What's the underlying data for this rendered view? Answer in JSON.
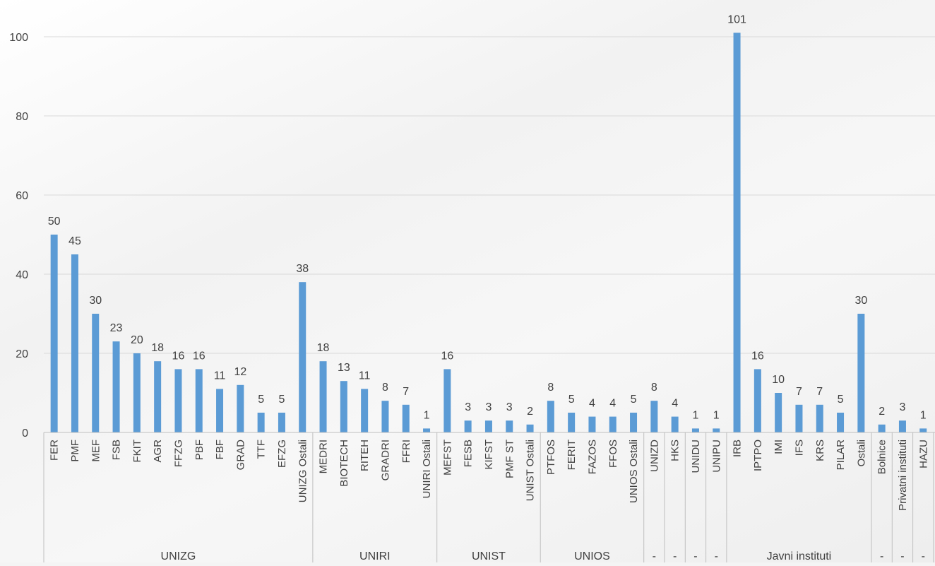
{
  "chart_data": {
    "type": "bar",
    "title": "",
    "xlabel": "",
    "ylabel": "",
    "ylim": [
      0,
      110
    ],
    "y_ticks": [
      "0",
      "20",
      "40",
      "60",
      "80",
      "100"
    ],
    "grid": true,
    "bar_color": "#5b9bd5",
    "categories": [
      "FER",
      "PMF",
      "MEF",
      "FSB",
      "FKIT",
      "AGR",
      "FFZG",
      "PBF",
      "FBF",
      "GRAD",
      "TTF",
      "EFZG",
      "UNIZG Ostali",
      "MEDRI",
      "BIOTECH",
      "RITEH",
      "GRADRI",
      "FFRI",
      "UNIRI Ostali",
      "MEFST",
      "FESB",
      "KIFST",
      "PMF ST",
      "UNIST Ostali",
      "PTFOS",
      "FERIT",
      "FAZOS",
      "FFOS",
      "UNIOS Ostali",
      "UNIZD",
      "HKS",
      "UNIDU",
      "UNIPU",
      "IRB",
      "IPTPO",
      "IMI",
      "IFS",
      "KRS",
      "PILAR",
      "Ostali",
      "Bolnice",
      "Privatni instituti",
      "HAZU"
    ],
    "values": [
      50,
      45,
      30,
      23,
      20,
      18,
      16,
      16,
      11,
      12,
      5,
      5,
      38,
      18,
      13,
      11,
      8,
      7,
      1,
      16,
      3,
      3,
      3,
      2,
      8,
      5,
      4,
      4,
      5,
      8,
      4,
      1,
      1,
      101,
      16,
      10,
      7,
      7,
      5,
      30,
      2,
      3,
      1
    ],
    "groups": [
      {
        "label": "UNIZG",
        "count": 13
      },
      {
        "label": "UNIRI",
        "count": 6
      },
      {
        "label": "UNIST",
        "count": 5
      },
      {
        "label": "UNIOS",
        "count": 5
      },
      {
        "label": "-",
        "count": 1
      },
      {
        "label": "-",
        "count": 1
      },
      {
        "label": "-",
        "count": 1
      },
      {
        "label": "-",
        "count": 1
      },
      {
        "label": "Javni instituti",
        "count": 7
      },
      {
        "label": "-",
        "count": 1
      },
      {
        "label": "-",
        "count": 1
      },
      {
        "label": "-",
        "count": 1
      }
    ]
  }
}
